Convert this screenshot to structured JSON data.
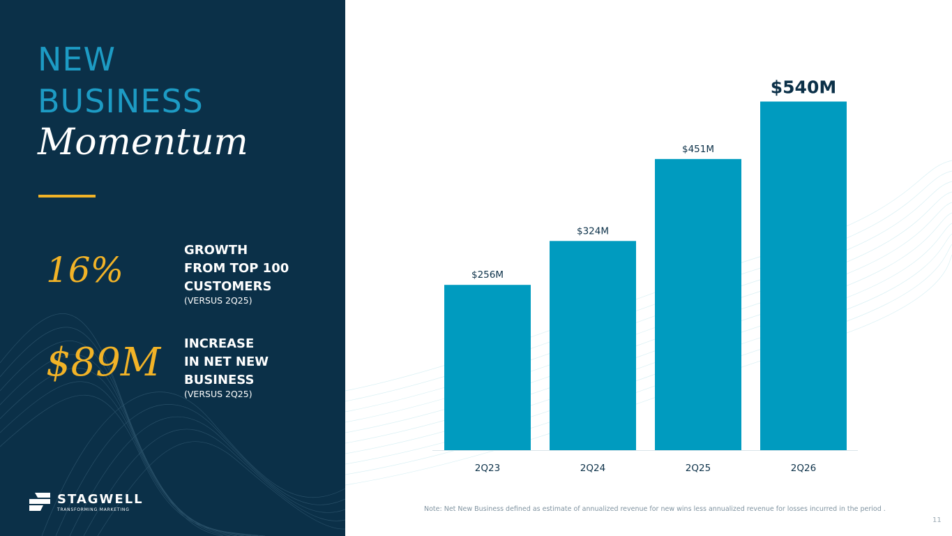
{
  "title": {
    "line1": "NEW",
    "line2": "BUSINESS",
    "script": "Momentum"
  },
  "stats": [
    {
      "value": "16%",
      "label_lines": [
        "GROWTH",
        "FROM TOP 100",
        "CUSTOMERS"
      ],
      "sub": "(VERSUS 2Q25)"
    },
    {
      "value": "$89M",
      "label_lines": [
        "INCREASE",
        "IN NET NEW",
        "BUSINESS"
      ],
      "sub": "(VERSUS 2Q25)"
    }
  ],
  "logo": {
    "word": "STAGWELL",
    "tagline": "TRANSFORMING MARKETING"
  },
  "chart_data": {
    "type": "bar",
    "categories": [
      "2Q23",
      "2Q24",
      "2Q25",
      "2Q26"
    ],
    "values": [
      256,
      324,
      451,
      540
    ],
    "data_labels": [
      "$256M",
      "$324M",
      "$451M",
      "$540M"
    ],
    "highlight_last_label": true,
    "ylim": [
      0,
      600
    ],
    "xlabel": "",
    "ylabel": "",
    "grid": false
  },
  "note": "Note: Net New Business defined as estimate of annualized revenue for new wins less annualized revenue for losses incurred in the period .",
  "page_number": "11",
  "colors": {
    "panel": "#0b3048",
    "title_accent": "#1d9bc4",
    "gold": "#f2b327",
    "bar": "#009bbf",
    "label_dark": "#0b3048"
  }
}
